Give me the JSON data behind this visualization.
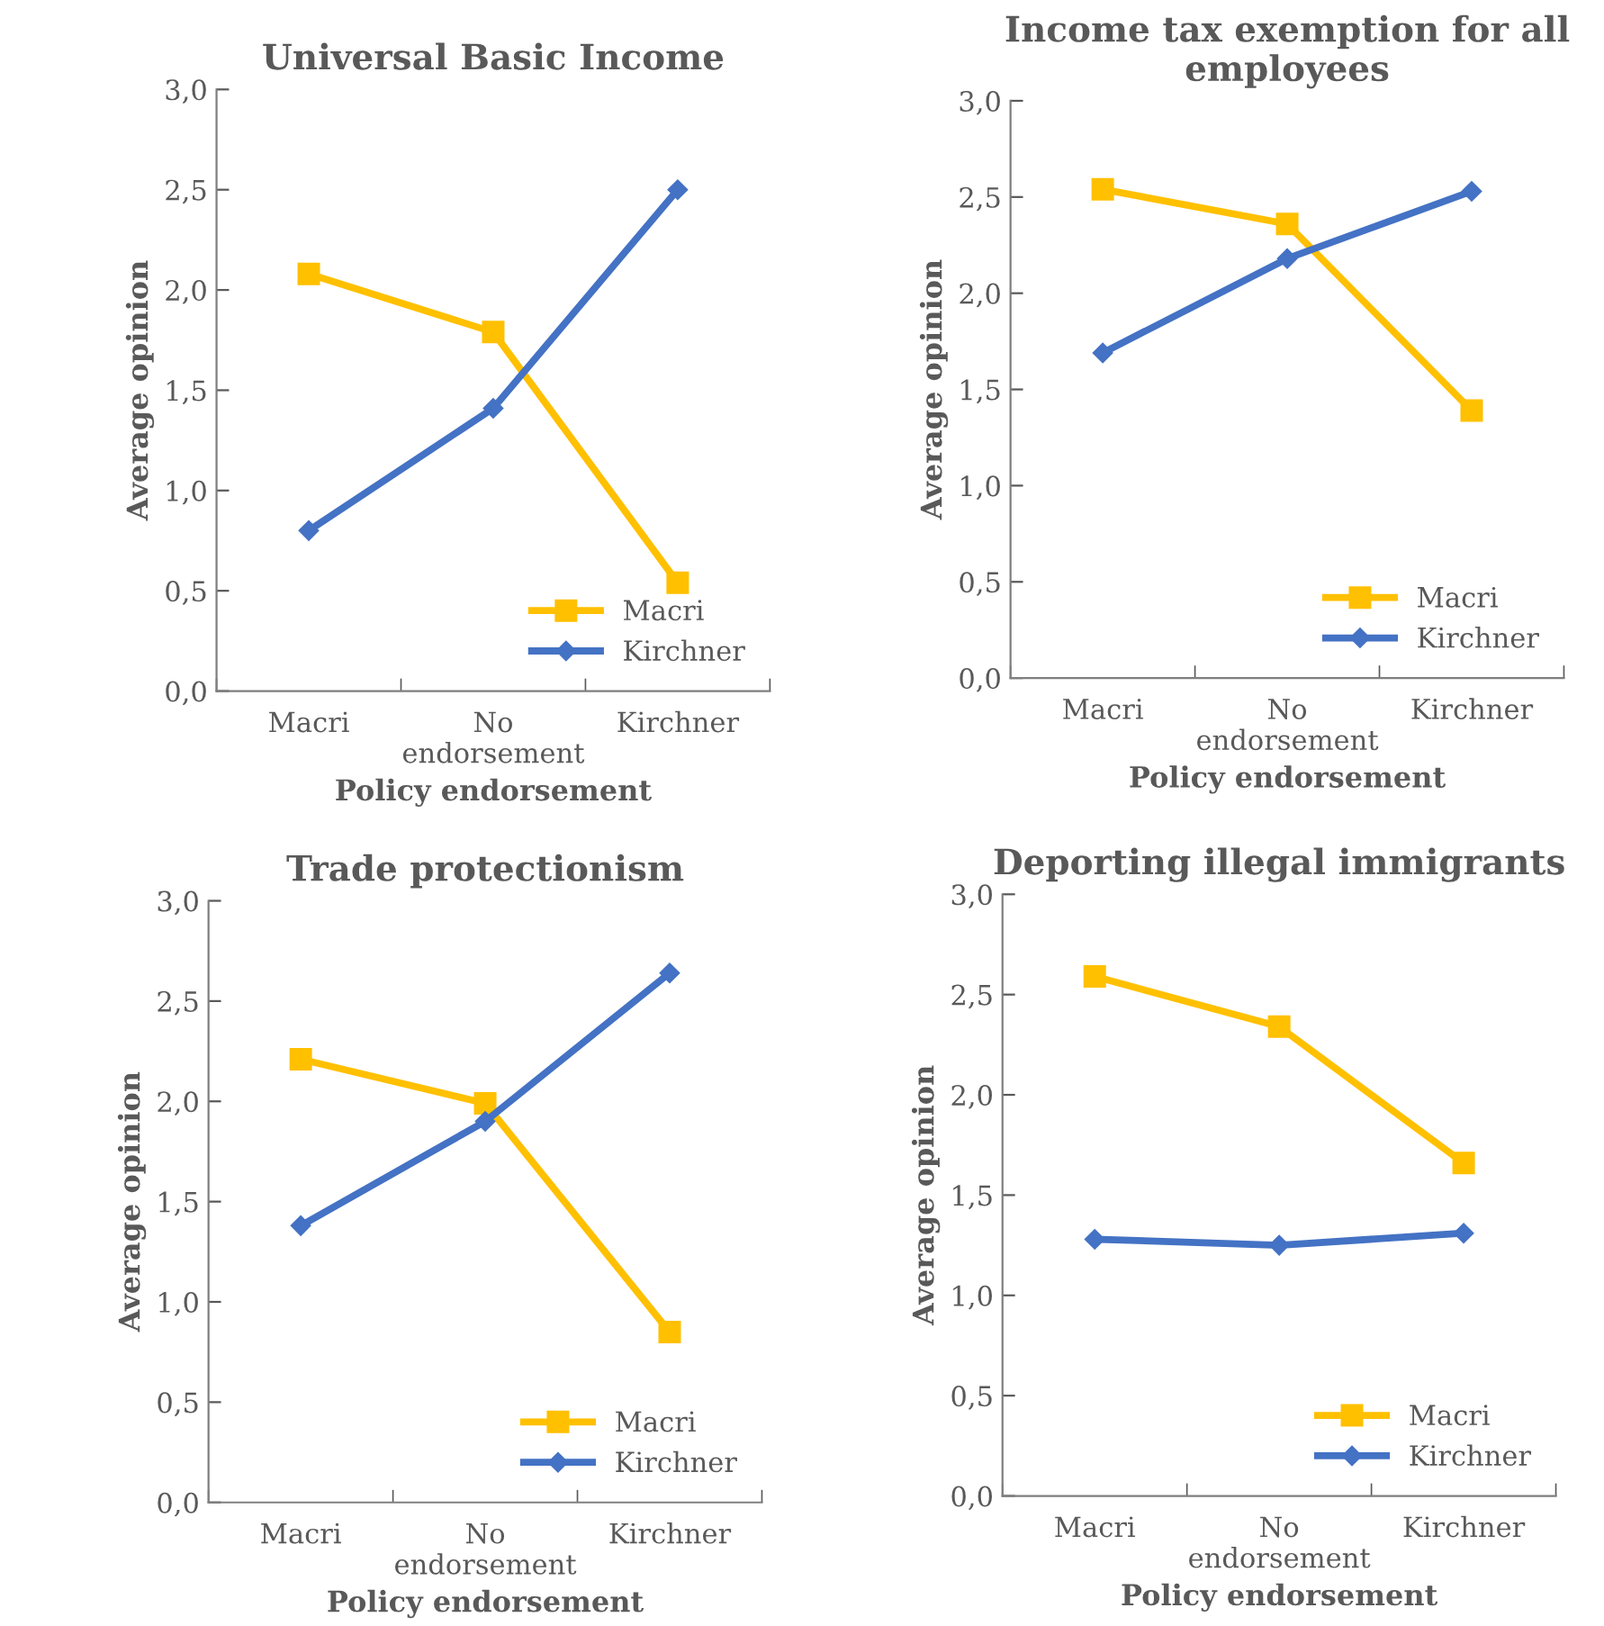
{
  "chart_data": [
    {
      "type": "line",
      "title": "Universal Basic Income",
      "xlabel": "Policy endorsement",
      "ylabel": "Average opinion",
      "categories": [
        "Macri",
        "No\nendorsement",
        "Kirchner"
      ],
      "series": [
        {
          "name": "Macri",
          "color": "#ffc000",
          "marker": "square",
          "values": [
            2.08,
            1.79,
            0.54
          ]
        },
        {
          "name": "Kirchner",
          "color": "#4472c4",
          "marker": "diamond",
          "values": [
            0.8,
            1.41,
            2.5
          ]
        }
      ],
      "ylim": [
        0,
        3
      ],
      "yticks": [
        {
          "value": 0,
          "label": "0,0"
        },
        {
          "value": 0.5,
          "label": "0,5"
        },
        {
          "value": 1,
          "label": "1,0"
        },
        {
          "value": 1.5,
          "label": "1,5"
        },
        {
          "value": 2,
          "label": "2,0"
        },
        {
          "value": 2.5,
          "label": "2,5"
        },
        {
          "value": 3,
          "label": "3,0"
        }
      ],
      "grid": false,
      "legend": "bottom right"
    },
    {
      "type": "line",
      "title": "Income tax exemption for all\nemployees",
      "xlabel": "Policy endorsement",
      "ylabel": "Average opinion",
      "categories": [
        "Macri",
        "No\nendorsement",
        "Kirchner"
      ],
      "series": [
        {
          "name": "Macri",
          "color": "#ffc000",
          "marker": "square",
          "values": [
            2.54,
            2.36,
            1.39
          ]
        },
        {
          "name": "Kirchner",
          "color": "#4472c4",
          "marker": "diamond",
          "values": [
            1.69,
            2.18,
            2.53
          ]
        }
      ],
      "ylim": [
        0,
        3
      ],
      "yticks": [
        {
          "value": 0,
          "label": "0,0"
        },
        {
          "value": 0.5,
          "label": "0,5"
        },
        {
          "value": 1,
          "label": "1,0"
        },
        {
          "value": 1.5,
          "label": "1,5"
        },
        {
          "value": 2,
          "label": "2,0"
        },
        {
          "value": 2.5,
          "label": "2,5"
        },
        {
          "value": 3,
          "label": "3,0"
        }
      ],
      "grid": false,
      "legend": "bottom right"
    },
    {
      "type": "line",
      "title": "Trade protectionism",
      "xlabel": "Policy endorsement",
      "ylabel": "Average opinion",
      "categories": [
        "Macri",
        "No\nendorsement",
        "Kirchner"
      ],
      "series": [
        {
          "name": "Macri",
          "color": "#ffc000",
          "marker": "square",
          "values": [
            2.21,
            1.99,
            0.85
          ]
        },
        {
          "name": "Kirchner",
          "color": "#4472c4",
          "marker": "diamond",
          "values": [
            1.38,
            1.9,
            2.64
          ]
        }
      ],
      "ylim": [
        0,
        3
      ],
      "yticks": [
        {
          "value": 0,
          "label": "0,0"
        },
        {
          "value": 0.5,
          "label": "0,5"
        },
        {
          "value": 1,
          "label": "1,0"
        },
        {
          "value": 1.5,
          "label": "1,5"
        },
        {
          "value": 2,
          "label": "2,0"
        },
        {
          "value": 2.5,
          "label": "2,5"
        },
        {
          "value": 3,
          "label": "3,0"
        }
      ],
      "grid": false,
      "legend": "bottom right"
    },
    {
      "type": "line",
      "title": "Deporting illegal immigrants",
      "xlabel": "Policy endorsement",
      "ylabel": "Average opinion",
      "categories": [
        "Macri",
        "No\nendorsement",
        "Kirchner"
      ],
      "series": [
        {
          "name": "Macri",
          "color": "#ffc000",
          "marker": "square",
          "values": [
            2.59,
            2.34,
            1.66
          ]
        },
        {
          "name": "Kirchner",
          "color": "#4472c4",
          "marker": "diamond",
          "values": [
            1.28,
            1.25,
            1.31
          ]
        }
      ],
      "ylim": [
        0,
        3
      ],
      "yticks": [
        {
          "value": 0,
          "label": "0,0"
        },
        {
          "value": 0.5,
          "label": "0,5"
        },
        {
          "value": 1,
          "label": "1,0"
        },
        {
          "value": 1.5,
          "label": "1,5"
        },
        {
          "value": 2,
          "label": "2,0"
        },
        {
          "value": 2.5,
          "label": "2,5"
        },
        {
          "value": 3,
          "label": "3,0"
        }
      ],
      "grid": false,
      "legend": "bottom right"
    }
  ]
}
